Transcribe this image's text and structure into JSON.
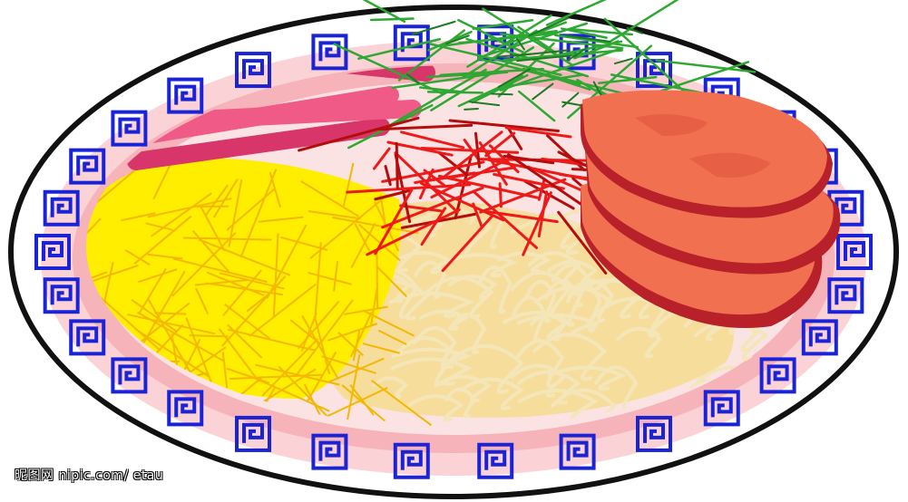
{
  "watermark": {
    "text": "昵图网 nipic.com/ etau"
  },
  "colors": {
    "plate_rim": "#111111",
    "plate": "#ffffff",
    "border_pattern": "#1a24d6",
    "plate_glow": "#f5a0a8",
    "noodles": "#f6dd9c",
    "noodle_strands": "#f4e6b8",
    "egg": "#ffee00",
    "egg_strands": "#f3b800",
    "ham_strips": "#f05a86",
    "ham_strips_dark": "#d8356a",
    "cucumber": "#2ea832",
    "chili": "#ee1a1a",
    "meat_slices": "#f07050",
    "meat_edge": "#c0282a"
  },
  "illustration": {
    "subject": "cold noodle dish",
    "items": [
      "plate-rim",
      "greek-key-border",
      "noodles",
      "egg-strips",
      "ham-strips",
      "cucumber-shreds",
      "chili-shreds",
      "meat-slices"
    ]
  }
}
